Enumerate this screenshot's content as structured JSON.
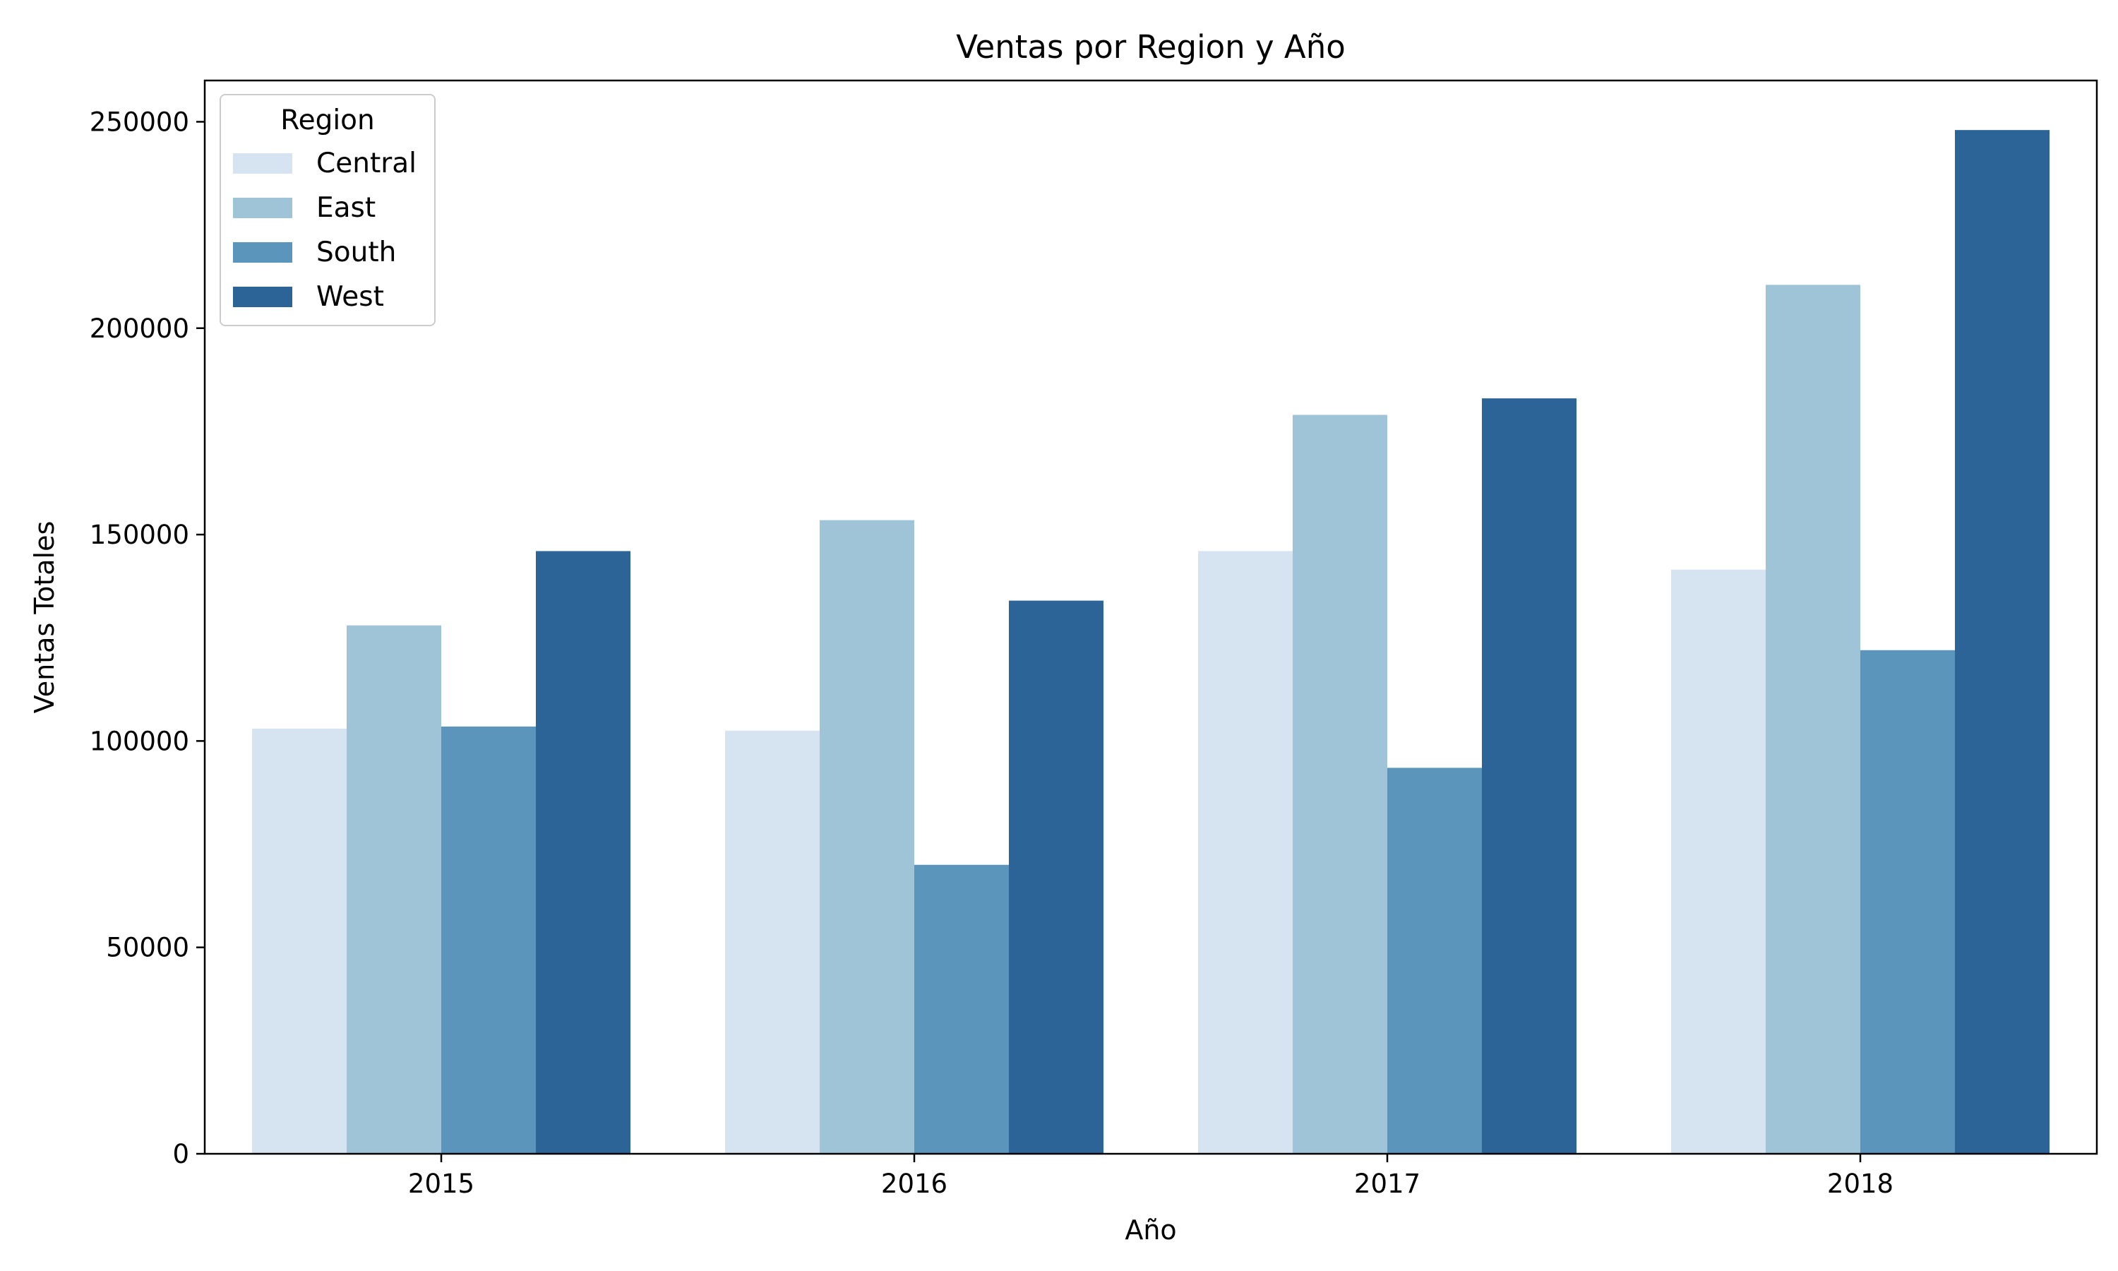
{
  "chart_data": {
    "type": "bar",
    "title": "Ventas por Region y Año",
    "xlabel": "Año",
    "ylabel": "Ventas Totales",
    "categories": [
      "2015",
      "2016",
      "2017",
      "2018"
    ],
    "ylim": [
      0,
      260000
    ],
    "yticks": [
      0,
      50000,
      100000,
      150000,
      200000,
      250000
    ],
    "grid": false,
    "legend": {
      "title": "Region",
      "placement": "top-left"
    },
    "series": [
      {
        "name": "Central",
        "color": "#d6e4f1",
        "values": [
          103000,
          102500,
          146000,
          141500
        ]
      },
      {
        "name": "East",
        "color": "#9fc3d7",
        "values": [
          128000,
          153500,
          179000,
          210500
        ]
      },
      {
        "name": "South",
        "color": "#5b95bb",
        "values": [
          103500,
          70000,
          93500,
          122000
        ]
      },
      {
        "name": "West",
        "color": "#2c6498",
        "values": [
          146000,
          134000,
          183000,
          248000
        ]
      }
    ]
  }
}
